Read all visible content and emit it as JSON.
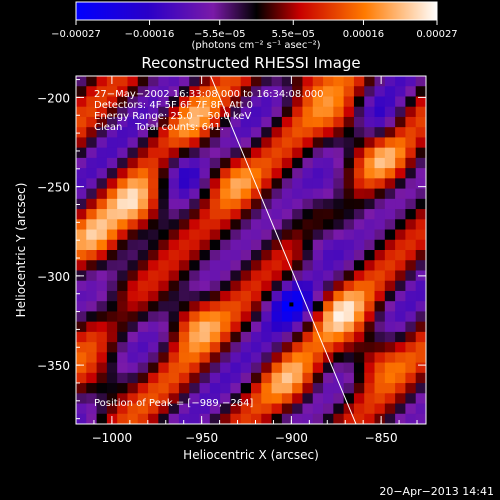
{
  "chart_data": {
    "type": "heatmap",
    "title": "Reconstructed RHESSI Image",
    "xlabel": "Heliocentric X (arcsec)",
    "ylabel": "Heliocentric Y (arcsec)",
    "xlim": [
      -1020,
      -825
    ],
    "ylim": [
      -383,
      -188
    ],
    "x_ticks": [
      -1000,
      -950,
      -900,
      -850
    ],
    "x_tick_labels": [
      "−1000",
      "−950",
      "−900",
      "−850"
    ],
    "y_ticks": [
      -200,
      -250,
      -300,
      -350
    ],
    "y_tick_labels": [
      "−200",
      "−250",
      "−300",
      "−350"
    ],
    "colorbar": {
      "min": -0.00027,
      "max": 0.00027,
      "ticks": [
        -0.00027,
        -0.00016,
        -5.5e-05,
        5.5e-05,
        0.00016,
        0.00027
      ],
      "tick_labels": [
        "−0.00027",
        "−0.00016",
        "−5.5e−05",
        "5.5e−05",
        "0.00016",
        "0.00027"
      ],
      "units_label": "(photons cm⁻² s⁻¹ asec⁻²)"
    },
    "annotations": [
      "27−May−2002 16:33:08.000 to 16:34:08.000",
      "Detectors: 4F 5F 6F 7F 8F, Att 0",
      "Energy Range: 25.0 − 50.0 keV",
      "Clean    Total counts: 641."
    ],
    "peak_label": "Position of Peak = [−989,−264]",
    "peak_position": [
      -989,
      -264
    ],
    "marker_position": [
      -900,
      -316
    ],
    "limb_line": {
      "x": [
        -945,
        -864
      ],
      "y": [
        -188,
        -383
      ]
    },
    "field": {
      "nx": 34,
      "ny": 34,
      "stripe_direction": [
        0.72,
        -0.69
      ],
      "stripe_wavelength_arcsec": 45,
      "bright_patches": [
        {
          "x": -985,
          "y": -262,
          "amp": 1.0
        },
        {
          "x": -1008,
          "y": -280,
          "amp": 0.8
        },
        {
          "x": -1005,
          "y": -360,
          "amp": 0.7
        },
        {
          "x": -955,
          "y": -325,
          "amp": 0.85
        },
        {
          "x": -935,
          "y": -245,
          "amp": 0.75
        },
        {
          "x": -895,
          "y": -185,
          "amp": 0.8
        },
        {
          "x": -870,
          "y": -215,
          "amp": 0.7
        },
        {
          "x": -848,
          "y": -235,
          "amp": 0.7
        },
        {
          "x": -872,
          "y": -320,
          "amp": 0.75
        },
        {
          "x": -855,
          "y": -345,
          "amp": 0.85
        },
        {
          "x": -900,
          "y": -360,
          "amp": 0.6
        },
        {
          "x": -955,
          "y": -210,
          "amp": 0.5
        }
      ],
      "dark_patches": [
        {
          "x": -962,
          "y": -240,
          "amp": 0.7
        },
        {
          "x": -900,
          "y": -316,
          "amp": 1.0
        },
        {
          "x": -885,
          "y": -280,
          "amp": 0.6
        },
        {
          "x": -875,
          "y": -255,
          "amp": 0.65
        },
        {
          "x": -850,
          "y": -215,
          "amp": 0.55
        },
        {
          "x": -1000,
          "y": -320,
          "amp": 0.5
        }
      ]
    }
  },
  "footer_timestamp": "20−Apr−2013 14:41"
}
